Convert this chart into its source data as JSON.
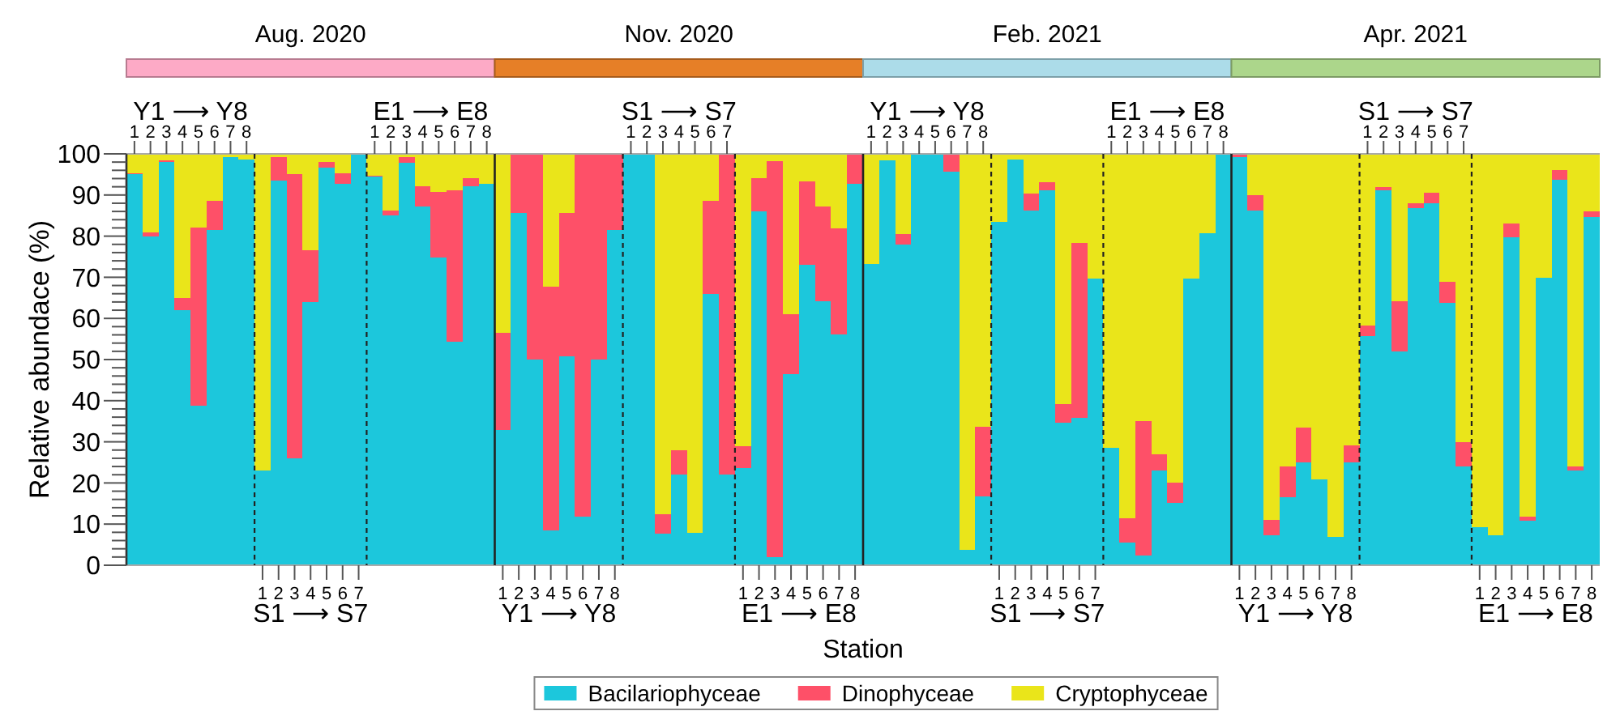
{
  "chart_data": [
    {
      "type": "bar",
      "stacked": true,
      "categories": [
        "1",
        "2",
        "3",
        "4",
        "5",
        "6",
        "7",
        "8"
      ],
      "x2label": "Y1 ⟶ Y8",
      "ylabel": "Relative abundace (%)",
      "ylim": [
        0,
        100
      ],
      "yticks": [
        0,
        {
          "value": 2,
          "label": null
        },
        {
          "value": 4,
          "label": null
        },
        {
          "value": 6,
          "label": null
        },
        {
          "value": 8,
          "label": null
        },
        10,
        {
          "value": 12,
          "label": null
        },
        {
          "value": 14,
          "label": null
        },
        {
          "value": 16,
          "label": null
        },
        {
          "value": 18,
          "label": null
        },
        20,
        {
          "value": 22,
          "label": null
        },
        {
          "value": 24,
          "label": null
        },
        {
          "value": 26,
          "label": null
        },
        {
          "value": 28,
          "label": null
        },
        30,
        {
          "value": 32,
          "label": null
        },
        {
          "value": 34,
          "label": null
        },
        {
          "value": 36,
          "label": null
        },
        {
          "value": 38,
          "label": null
        },
        40,
        {
          "value": 42,
          "label": null
        },
        {
          "value": 44,
          "label": null
        },
        {
          "value": 46,
          "label": null
        },
        {
          "value": 48,
          "label": null
        },
        50,
        {
          "value": 52,
          "label": null
        },
        {
          "value": 54,
          "label": null
        },
        {
          "value": 56,
          "label": null
        },
        {
          "value": 58,
          "label": null
        },
        60,
        {
          "value": 62,
          "label": null
        },
        {
          "value": 64,
          "label": null
        },
        {
          "value": 66,
          "label": null
        },
        {
          "value": 68,
          "label": null
        },
        70,
        {
          "value": 72,
          "label": null
        },
        {
          "value": 74,
          "label": null
        },
        {
          "value": 76,
          "label": null
        },
        {
          "value": 78,
          "label": null
        },
        80,
        {
          "value": 82,
          "label": null
        },
        {
          "value": 84,
          "label": null
        },
        {
          "value": 86,
          "label": null
        },
        {
          "value": 88,
          "label": null
        },
        90,
        {
          "value": 92,
          "label": null
        },
        {
          "value": 94,
          "label": null
        },
        {
          "value": 96,
          "label": null
        },
        {
          "value": 98,
          "label": null
        },
        100
      ],
      "series": [
        {
          "color": "#1cc7dc",
          "values": [
            95,
            80,
            98,
            62,
            38.7,
            81.5,
            99.2,
            98.6
          ]
        },
        {
          "color": "#fe5068",
          "values": [
            0.3,
            1,
            0.5,
            3,
            43.4,
            7,
            0,
            0
          ]
        },
        {
          "color": "#eae51a",
          "values": [
            4.7,
            19,
            1.5,
            35,
            17.9,
            11.5,
            0.8,
            1.4
          ]
        }
      ]
    },
    {
      "type": "bar",
      "stacked": true,
      "title": "Aug. 2020",
      "categories": [
        "1",
        "2",
        "3",
        "4",
        "5",
        "6",
        "7"
      ],
      "xlabel": "S1 ⟶ S7",
      "ylim": [
        0,
        100
      ],
      "tick_labels": "x",
      "series": [
        {
          "color": "#1cc7dc",
          "values": [
            23,
            93.6,
            26,
            64,
            96.7,
            92.7,
            100
          ]
        },
        {
          "color": "#fe5068",
          "values": [
            0,
            5.7,
            69,
            12.5,
            1.3,
            2.6,
            0
          ]
        },
        {
          "color": "#eae51a",
          "values": [
            77,
            0.7,
            5,
            23.5,
            2,
            4.7,
            0
          ]
        }
      ]
    },
    {
      "type": "bar",
      "stacked": true,
      "categories": [
        "1",
        "2",
        "3",
        "4",
        "5",
        "6",
        "7",
        "8"
      ],
      "x2label": "E1 ⟶ E8",
      "ylim": [
        0,
        100
      ],
      "tick_labels": "x",
      "series": [
        {
          "color": "#1cc7dc",
          "values": [
            94.4,
            85,
            97.8,
            87.3,
            74.8,
            54.4,
            92.1,
            92.8
          ]
        },
        {
          "color": "#fe5068",
          "values": [
            0.3,
            1.2,
            1.5,
            4.8,
            16,
            36.8,
            2,
            0
          ]
        },
        {
          "color": "#eae51a",
          "values": [
            5.3,
            13.8,
            0.7,
            7.9,
            9.2,
            8.8,
            5.9,
            7.2
          ]
        }
      ]
    },
    {
      "type": "bar",
      "stacked": true,
      "categories": [
        "1",
        "2",
        "3",
        "4",
        "5",
        "6",
        "7",
        "8"
      ],
      "xlabel": "Y1 ⟶ Y8",
      "ylim": [
        0,
        100
      ],
      "tick_labels": "x",
      "series": [
        {
          "color": "#1cc7dc",
          "values": [
            32.8,
            85.6,
            50,
            8.5,
            50.7,
            11.8,
            50,
            81.5
          ]
        },
        {
          "color": "#fe5068",
          "values": [
            23.6,
            14.4,
            50,
            59.3,
            34.9,
            88.2,
            50,
            18.5
          ]
        },
        {
          "color": "#eae51a",
          "values": [
            43.6,
            0,
            0,
            32.2,
            14.4,
            0,
            0,
            0
          ]
        }
      ]
    },
    {
      "type": "bar",
      "stacked": true,
      "title": "Nov. 2020",
      "categories": [
        "1",
        "2",
        "3",
        "4",
        "5",
        "6",
        "7"
      ],
      "x2label": "S1 ⟶ S7",
      "ylim": [
        0,
        100
      ],
      "tick_labels": "x",
      "series": [
        {
          "color": "#1cc7dc",
          "values": [
            100,
            100,
            7.6,
            22.1,
            7.9,
            65.9,
            22.1
          ]
        },
        {
          "color": "#fe5068",
          "values": [
            0,
            0,
            4.9,
            5.8,
            0,
            22.7,
            77.9
          ]
        },
        {
          "color": "#eae51a",
          "values": [
            0,
            0,
            87.5,
            72.1,
            92.1,
            11.4,
            0
          ]
        }
      ]
    },
    {
      "type": "bar",
      "stacked": true,
      "categories": [
        "1",
        "2",
        "3",
        "4",
        "5",
        "6",
        "7",
        "8"
      ],
      "xlabel": "E1 ⟶ E8",
      "ylim": [
        0,
        100
      ],
      "tick_labels": "x",
      "series": [
        {
          "color": "#1cc7dc",
          "values": [
            23.7,
            86,
            2,
            46.5,
            73,
            64.2,
            56.1,
            92.8
          ]
        },
        {
          "color": "#fe5068",
          "values": [
            5.3,
            8.1,
            96.3,
            14.6,
            20.3,
            23.1,
            25.8,
            7.2
          ]
        },
        {
          "color": "#eae51a",
          "values": [
            71,
            5.9,
            1.7,
            38.9,
            6.7,
            12.7,
            18.1,
            0
          ]
        }
      ]
    },
    {
      "type": "bar",
      "stacked": true,
      "categories": [
        "1",
        "2",
        "3",
        "4",
        "5",
        "6",
        "7",
        "8"
      ],
      "x2label": "Y1 ⟶ Y8",
      "xlabel": "Station",
      "legend": "bottom",
      "ylim": [
        0,
        100
      ],
      "tick_labels": "x",
      "series": [
        {
          "name": "Bacilariophyceae",
          "color": "#1cc7dc",
          "values": [
            73.3,
            98.4,
            78,
            100,
            100,
            95.7,
            3.7,
            16.8
          ]
        },
        {
          "name": "Dinophyceae",
          "color": "#fe5068",
          "values": [
            0,
            0,
            2.6,
            0,
            0,
            4.3,
            0,
            16.8
          ]
        },
        {
          "name": "Cryptophyceae",
          "color": "#eae51a",
          "values": [
            26.7,
            1.6,
            19.4,
            0,
            0,
            0,
            96.3,
            66.4
          ]
        }
      ]
    },
    {
      "type": "bar",
      "stacked": true,
      "title": "Feb. 2021",
      "categories": [
        "1",
        "2",
        "3",
        "4",
        "5",
        "6",
        "7"
      ],
      "xlabel": "S1 ⟶ S7",
      "ylim": [
        0,
        100
      ],
      "tick_labels": "x",
      "series": [
        {
          "color": "#1cc7dc",
          "values": [
            83.4,
            98.7,
            86.2,
            91.2,
            34.7,
            35.8,
            69.7
          ]
        },
        {
          "color": "#fe5068",
          "values": [
            0,
            0,
            4.2,
            2,
            4.4,
            42.6,
            0
          ]
        },
        {
          "color": "#eae51a",
          "values": [
            16.6,
            1.3,
            9.6,
            6.8,
            60.9,
            21.6,
            30.3
          ]
        }
      ]
    },
    {
      "type": "bar",
      "stacked": true,
      "categories": [
        "1",
        "2",
        "3",
        "4",
        "5",
        "6",
        "7",
        "8"
      ],
      "x2label": "E1 ⟶ E8",
      "ylim": [
        0,
        100
      ],
      "tick_labels": "x",
      "series": [
        {
          "color": "#1cc7dc",
          "values": [
            28.6,
            5.6,
            2.4,
            23.1,
            15.2,
            69.7,
            80.7,
            100
          ]
        },
        {
          "color": "#fe5068",
          "values": [
            0,
            5.9,
            32.7,
            3.9,
            4.9,
            0,
            0,
            0
          ]
        },
        {
          "color": "#eae51a",
          "values": [
            71.4,
            88.5,
            64.9,
            73,
            79.9,
            30.3,
            19.3,
            0
          ]
        }
      ]
    },
    {
      "type": "bar",
      "stacked": true,
      "categories": [
        "1",
        "2",
        "3",
        "4",
        "5",
        "6",
        "7",
        "8"
      ],
      "xlabel": "Y1 ⟶ Y8",
      "ylim": [
        0,
        100
      ],
      "tick_labels": "x",
      "series": [
        {
          "color": "#1cc7dc",
          "values": [
            99.2,
            86.2,
            7.2,
            16.5,
            25,
            20.8,
            6.9,
            25
          ]
        },
        {
          "color": "#fe5068",
          "values": [
            0.8,
            3.7,
            3.9,
            7.5,
            8.4,
            0,
            0,
            4.2
          ]
        },
        {
          "color": "#eae51a",
          "values": [
            0,
            10.1,
            88.9,
            76,
            66.6,
            79.2,
            93.1,
            70.8
          ]
        }
      ]
    },
    {
      "type": "bar",
      "stacked": true,
      "title": "Apr. 2021",
      "categories": [
        "1",
        "2",
        "3",
        "4",
        "5",
        "6",
        "7"
      ],
      "x2label": "S1 ⟶ S7",
      "ylim": [
        0,
        100
      ],
      "tick_labels": "x",
      "series": [
        {
          "color": "#1cc7dc",
          "values": [
            55.7,
            91.2,
            51.9,
            86.8,
            87.9,
            63.7,
            24
          ]
        },
        {
          "color": "#fe5068",
          "values": [
            2.6,
            0.7,
            12.3,
            1.1,
            2.7,
            5.1,
            5.9
          ]
        },
        {
          "color": "#eae51a",
          "values": [
            41.7,
            8.1,
            35.8,
            12.1,
            9.4,
            31.2,
            70.1
          ]
        }
      ]
    },
    {
      "type": "bar",
      "stacked": true,
      "categories": [
        "1",
        "2",
        "3",
        "4",
        "5",
        "6",
        "7",
        "8"
      ],
      "xlabel": "E1 ⟶ E8",
      "ylim": [
        0,
        100
      ],
      "tick_labels": "x",
      "series": [
        {
          "color": "#1cc7dc",
          "values": [
            9.2,
            7.2,
            79.7,
            10.9,
            69.9,
            93.7,
            23.1,
            84.7
          ]
        },
        {
          "color": "#fe5068",
          "values": [
            0,
            0,
            3.3,
            0.9,
            0,
            2.4,
            0.9,
            1.3
          ]
        },
        {
          "color": "#eae51a",
          "values": [
            90.8,
            92.8,
            17,
            88.2,
            30.1,
            3.9,
            76,
            14
          ]
        }
      ]
    }
  ]
}
